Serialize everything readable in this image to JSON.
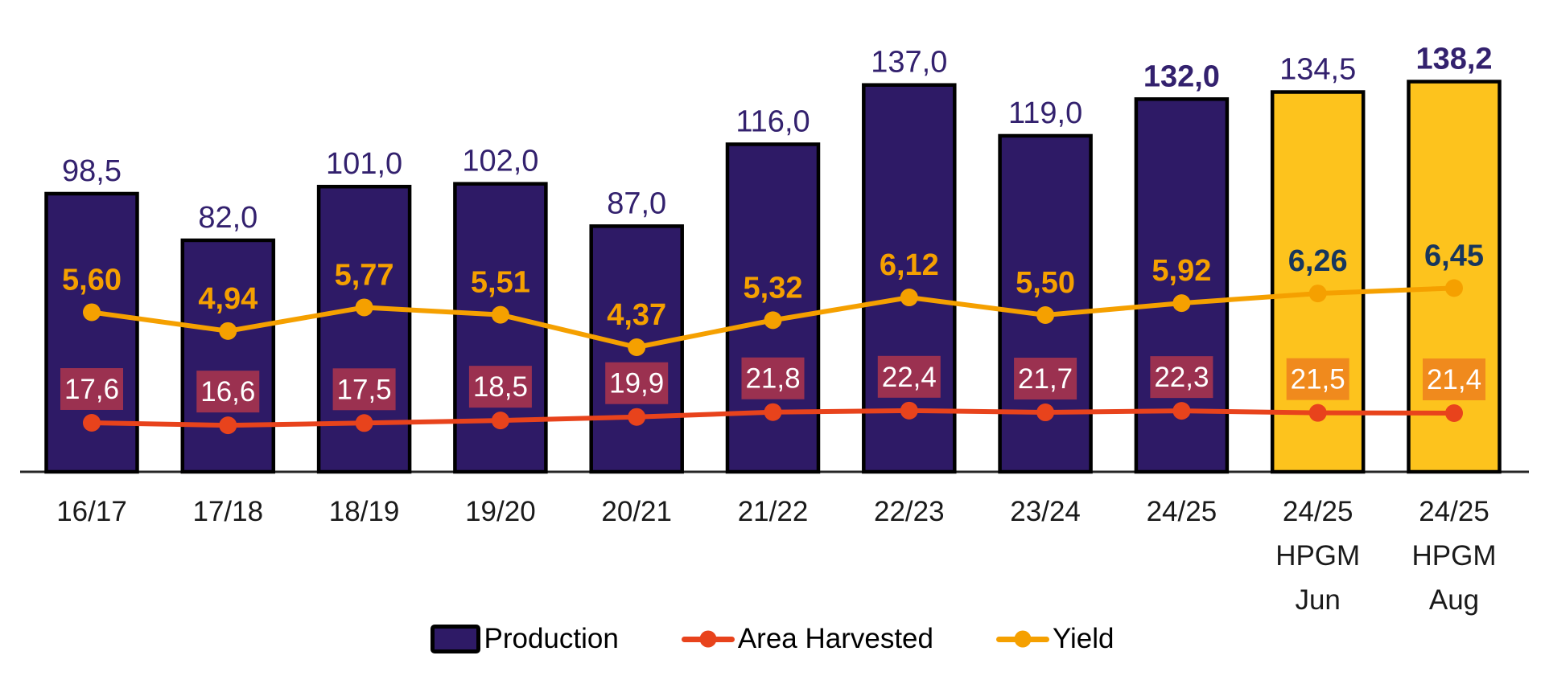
{
  "colors": {
    "background": "#FFFFFF",
    "bar_production": "#2E1A66",
    "bar_hpgm": "#FDC31D",
    "bar_border": "#000000",
    "production_label": "#33216E",
    "yield_line": "#F5A000",
    "yield_label_orange": "#F5A000",
    "yield_label_navy": "#17365D",
    "area_line": "#E8431C",
    "area_box_maroon": "#9B3150",
    "area_box_orange": "#F08A1D",
    "area_box_text": "#FFFFFF",
    "axis": "#262626",
    "axis_label": "#1A1A1A",
    "legend_text": "#000000"
  },
  "chart_data": {
    "type": "bar+line combo",
    "title": "",
    "xlabel": "",
    "ylabel": "",
    "grid": false,
    "y_axes_visible": false,
    "legend_position": "bottom",
    "categories": [
      "16/17",
      "17/18",
      "18/19",
      "19/20",
      "20/21",
      "21/22",
      "22/23",
      "23/24",
      "24/25",
      "24/25 HPGM Jun",
      "24/25 HPGM Aug"
    ],
    "hpgm_flags": [
      false,
      false,
      false,
      false,
      false,
      false,
      false,
      false,
      false,
      true,
      true
    ],
    "series": [
      {
        "name": "Production",
        "type": "bar",
        "values": [
          98.5,
          82.0,
          101.0,
          102.0,
          87.0,
          116.0,
          137.0,
          119.0,
          132.0,
          134.5,
          138.2
        ],
        "labels": [
          "98,5",
          "82,0",
          "101,0",
          "102,0",
          "87,0",
          "116,0",
          "137,0",
          "119,0",
          "132,0",
          "134,5",
          "138,2"
        ],
        "bold_labels": [
          false,
          false,
          false,
          false,
          false,
          false,
          false,
          false,
          true,
          false,
          true
        ]
      },
      {
        "name": "Area Harvested",
        "type": "line",
        "values": [
          17.6,
          16.6,
          17.5,
          18.5,
          19.9,
          21.8,
          22.4,
          21.7,
          22.3,
          21.5,
          21.4
        ],
        "labels": [
          "17,6",
          "16,6",
          "17,5",
          "18,5",
          "19,9",
          "21,8",
          "22,4",
          "21,7",
          "22,3",
          "21,5",
          "21,4"
        ]
      },
      {
        "name": "Yield",
        "type": "line",
        "values": [
          5.6,
          4.94,
          5.77,
          5.51,
          4.37,
          5.32,
          6.12,
          5.5,
          5.92,
          6.26,
          6.45
        ],
        "labels": [
          "5,60",
          "4,94",
          "5,77",
          "5,51",
          "4,37",
          "5,32",
          "6,12",
          "5,50",
          "5,92",
          "6,26",
          "6,45"
        ]
      }
    ]
  }
}
